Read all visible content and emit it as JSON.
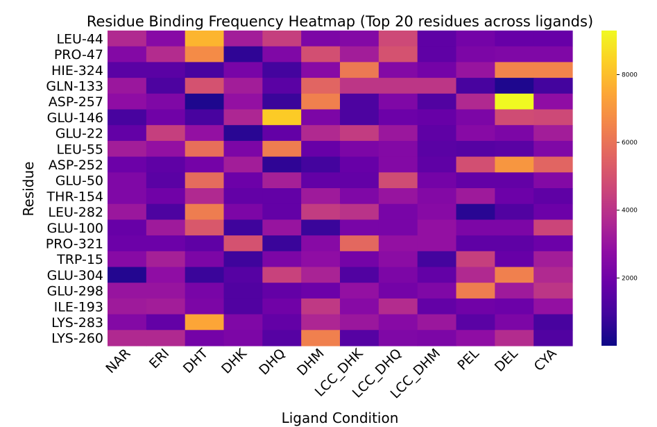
{
  "chart_data": {
    "type": "heatmap",
    "title": "Residue Binding Frequency Heatmap (Top 20 residues across ligands)",
    "xlabel": "Ligand Condition",
    "ylabel": "Residue",
    "rows": [
      "LEU-44",
      "PRO-47",
      "HIE-324",
      "GLN-133",
      "ASP-257",
      "GLU-146",
      "GLU-22",
      "LEU-55",
      "ASP-252",
      "GLU-50",
      "THR-154",
      "LEU-282",
      "GLU-100",
      "PRO-321",
      "TRP-15",
      "GLU-304",
      "GLU-298",
      "ILE-193",
      "LYS-283",
      "LYS-260"
    ],
    "columns": [
      "NAR",
      "ERI",
      "DHT",
      "DHK",
      "DHQ",
      "DHM",
      "LCC_DHK",
      "LCC_DHQ",
      "LCC_DHM",
      "PEL",
      "DEL",
      "CYA"
    ],
    "values": [
      [
        3700,
        2600,
        7800,
        3300,
        4400,
        2300,
        2500,
        4700,
        1600,
        2100,
        1800,
        1800
      ],
      [
        2500,
        3800,
        6700,
        600,
        2400,
        4900,
        3300,
        5000,
        1600,
        2300,
        2400,
        2400
      ],
      [
        1500,
        1500,
        1100,
        2200,
        1000,
        2600,
        6200,
        2500,
        2100,
        3000,
        6500,
        6500
      ],
      [
        3100,
        1200,
        5000,
        3300,
        1500,
        5600,
        4100,
        4100,
        4100,
        1100,
        300,
        1000
      ],
      [
        2800,
        2400,
        300,
        2900,
        800,
        6400,
        1200,
        2400,
        1300,
        3700,
        9300,
        2800
      ],
      [
        1100,
        2000,
        1100,
        3600,
        8300,
        2300,
        1200,
        1900,
        1800,
        2300,
        4800,
        4700
      ],
      [
        1700,
        4400,
        2900,
        500,
        1700,
        3700,
        4300,
        3100,
        1600,
        2600,
        2300,
        3300
      ],
      [
        3300,
        2900,
        5900,
        2300,
        6300,
        1800,
        2300,
        2500,
        1500,
        1400,
        1500,
        2400
      ],
      [
        1900,
        1600,
        2100,
        3300,
        600,
        1000,
        1800,
        2500,
        1600,
        4900,
        7000,
        5600
      ],
      [
        2400,
        1500,
        5800,
        1900,
        3400,
        1700,
        1700,
        4800,
        2100,
        1700,
        1700,
        2500
      ],
      [
        2400,
        2000,
        3700,
        1700,
        1700,
        3200,
        2400,
        3000,
        2500,
        3200,
        1900,
        1600
      ],
      [
        3100,
        1200,
        6300,
        2300,
        1700,
        4300,
        4000,
        2200,
        2600,
        500,
        1300,
        1900
      ],
      [
        1800,
        3200,
        5200,
        900,
        3000,
        800,
        2200,
        2200,
        2900,
        2300,
        2300,
        4600
      ],
      [
        1900,
        1900,
        1600,
        5000,
        800,
        2600,
        5700,
        2900,
        2900,
        1600,
        1600,
        1900
      ],
      [
        2600,
        3400,
        2300,
        900,
        2300,
        2800,
        2100,
        2700,
        1000,
        4400,
        1800,
        3300
      ],
      [
        400,
        2800,
        800,
        1400,
        4500,
        3500,
        1300,
        2300,
        1700,
        3700,
        6400,
        3700
      ],
      [
        3000,
        3000,
        2200,
        1300,
        1700,
        1900,
        2900,
        2100,
        2400,
        6300,
        3200,
        4100
      ],
      [
        3200,
        3300,
        2300,
        1300,
        2000,
        4200,
        2600,
        3800,
        1700,
        2000,
        1900,
        2900
      ],
      [
        2500,
        1700,
        7400,
        2400,
        1700,
        3600,
        3100,
        2600,
        3100,
        1500,
        2300,
        1100
      ],
      [
        3700,
        3700,
        2100,
        2300,
        1400,
        6400,
        1400,
        2400,
        2300,
        2800,
        3800,
        1300
      ]
    ],
    "colorbar": {
      "colormap": "plasma",
      "vmin": 0,
      "vmax": 9300,
      "ticks": [
        2000,
        4000,
        6000,
        8000
      ]
    },
    "grid": false
  }
}
